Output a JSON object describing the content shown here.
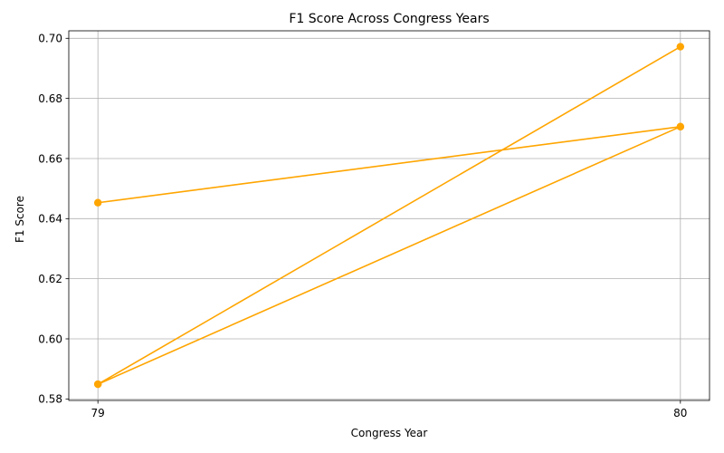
{
  "chart_data": {
    "type": "line",
    "title": "F1 Score Across Congress Years",
    "xlabel": "Congress Year",
    "ylabel": "F1 Score",
    "xlim": [
      78.95,
      80.05
    ],
    "ylim": [
      0.5795,
      0.7025
    ],
    "x_ticks": [
      79,
      80
    ],
    "x_tick_labels": [
      "79",
      "80"
    ],
    "y_ticks": [
      0.58,
      0.6,
      0.62,
      0.64,
      0.66,
      0.68,
      0.7
    ],
    "y_tick_labels": [
      "0.58",
      "0.60",
      "0.62",
      "0.64",
      "0.66",
      "0.68",
      "0.70"
    ],
    "grid": true,
    "legend": false,
    "series": [
      {
        "color": "#FFA500",
        "marker": "circle",
        "points": [
          {
            "x": 79,
            "y": 0.6453
          },
          {
            "x": 80,
            "y": 0.6706
          },
          {
            "x": 79,
            "y": 0.5849
          },
          {
            "x": 80,
            "y": 0.6972
          },
          {
            "x": 79,
            "y": 0.5849
          },
          {
            "x": 80,
            "y": 0.6706
          }
        ]
      }
    ]
  }
}
